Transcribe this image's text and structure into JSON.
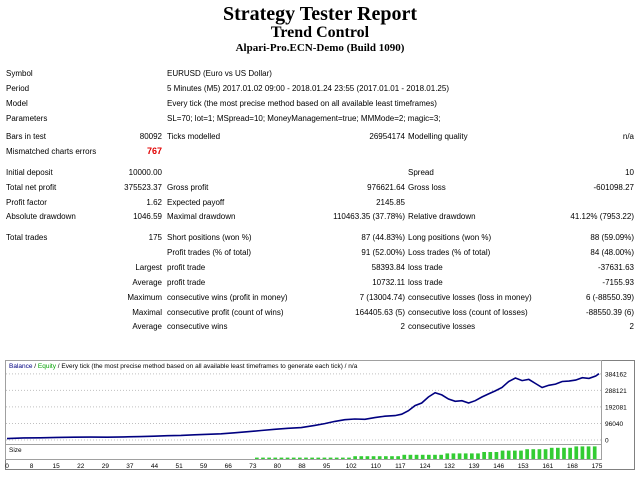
{
  "header": {
    "title": "Strategy Tester Report",
    "subtitle": "Trend Control",
    "server": "Alpari-Pro.ECN-Demo (Build 1090)"
  },
  "info": {
    "symbol_label": "Symbol",
    "symbol": "EURUSD (Euro vs US Dollar)",
    "period_label": "Period",
    "period": "5 Minutes (M5) 2017.01.02 09:00 - 2018.01.24 23:55 (2017.01.01 - 2018.01.25)",
    "model_label": "Model",
    "model": "Every tick (the most precise method based on all available least timeframes)",
    "parameters_label": "Parameters",
    "parameters": "SL=70; lot=1; MSpread=10; MoneyManagement=true; MMMode=2; magic=3;"
  },
  "bars": {
    "bars_label": "Bars in test",
    "bars": "80092",
    "ticks_label": "Ticks modelled",
    "ticks": "26954174",
    "quality_label": "Modelling quality",
    "quality": "n/a",
    "mismatch_label": "Mismatched charts errors",
    "mismatch": "767"
  },
  "stats": {
    "initial_deposit_label": "Initial deposit",
    "initial_deposit": "10000.00",
    "spread_label": "Spread",
    "spread": "10",
    "net_profit_label": "Total net profit",
    "net_profit": "375523.37",
    "gross_profit_label": "Gross profit",
    "gross_profit": "976621.64",
    "gross_loss_label": "Gross loss",
    "gross_loss": "-601098.27",
    "profit_factor_label": "Profit factor",
    "profit_factor": "1.62",
    "expected_payoff_label": "Expected payoff",
    "expected_payoff": "2145.85",
    "abs_dd_label": "Absolute drawdown",
    "abs_dd": "1046.59",
    "max_dd_label": "Maximal drawdown",
    "max_dd": "110463.35 (37.78%)",
    "rel_dd_label": "Relative drawdown",
    "rel_dd": "41.12% (7953.22)"
  },
  "trades": {
    "total_label": "Total trades",
    "total": "175",
    "short_label": "Short positions (won %)",
    "short": "87 (44.83%)",
    "long_label": "Long positions (won %)",
    "long": "88 (59.09%)",
    "profit_trades_label": "Profit trades (% of total)",
    "profit_trades": "91 (52.00%)",
    "loss_trades_label": "Loss trades (% of total)",
    "loss_trades": "84 (48.00%)",
    "largest_label": "Largest",
    "average_label": "Average",
    "maximum_label": "Maximum",
    "maximal_label": "Maximal",
    "average2_label": "Average",
    "largest_profit_label": "profit trade",
    "largest_profit": "58393.84",
    "largest_loss_label": "loss trade",
    "largest_loss": "-37631.63",
    "avg_profit_label": "profit trade",
    "avg_profit": "10732.11",
    "avg_loss_label": "loss trade",
    "avg_loss": "-7155.93",
    "max_cons_wins_label": "consecutive wins (profit in money)",
    "max_cons_wins": "7 (13004.74)",
    "max_cons_losses_label": "consecutive losses (loss in money)",
    "max_cons_losses": "6 (-88550.39)",
    "maximal_profit_label": "consecutive profit (count of wins)",
    "maximal_profit": "164405.63 (5)",
    "maximal_loss_label": "consecutive loss (count of losses)",
    "maximal_loss": "-88550.39 (6)",
    "avg_cons_wins_label": "consecutive wins",
    "avg_cons_wins": "2",
    "avg_cons_losses_label": "consecutive losses",
    "avg_cons_losses": "2"
  },
  "chart_data": {
    "type": "line",
    "legend_balance": "Balance",
    "legend_equity": "Equity",
    "legend_rest": "Every tick (the most precise method based on all available least timeframes to generate each tick)",
    "legend_na": "n/a",
    "size_label": "Size",
    "x_ticks": [
      "0",
      "8",
      "15",
      "22",
      "29",
      "37",
      "44",
      "51",
      "59",
      "66",
      "73",
      "80",
      "88",
      "95",
      "102",
      "110",
      "117",
      "124",
      "132",
      "139",
      "146",
      "153",
      "161",
      "168",
      "175"
    ],
    "y_ticks": [
      "384162",
      "288121",
      "192081",
      "96040",
      "0"
    ],
    "ylim": [
      0,
      395000
    ],
    "xlim": [
      0,
      177
    ],
    "colors": {
      "balance": "#000080",
      "equity": "#00a000",
      "size": "#33cc33",
      "grid": "#c0c0c0"
    },
    "balance": [
      [
        0,
        8000
      ],
      [
        5,
        12000
      ],
      [
        10,
        13000
      ],
      [
        15,
        15000
      ],
      [
        20,
        16000
      ],
      [
        25,
        17000
      ],
      [
        30,
        16500
      ],
      [
        35,
        18000
      ],
      [
        40,
        20000
      ],
      [
        44,
        22000
      ],
      [
        48,
        25000
      ],
      [
        52,
        27000
      ],
      [
        56,
        30000
      ],
      [
        60,
        33000
      ],
      [
        64,
        36000
      ],
      [
        68,
        42000
      ],
      [
        72,
        48000
      ],
      [
        76,
        55000
      ],
      [
        80,
        62000
      ],
      [
        84,
        68000
      ],
      [
        88,
        72000
      ],
      [
        92,
        85000
      ],
      [
        95,
        95000
      ],
      [
        98,
        108000
      ],
      [
        101,
        118000
      ],
      [
        104,
        122000
      ],
      [
        107,
        120000
      ],
      [
        110,
        130000
      ],
      [
        113,
        138000
      ],
      [
        116,
        142000
      ],
      [
        118,
        150000
      ],
      [
        120,
        170000
      ],
      [
        122,
        200000
      ],
      [
        124,
        215000
      ],
      [
        126,
        250000
      ],
      [
        128,
        275000
      ],
      [
        130,
        262000
      ],
      [
        132,
        238000
      ],
      [
        134,
        225000
      ],
      [
        136,
        228000
      ],
      [
        138,
        215000
      ],
      [
        140,
        228000
      ],
      [
        142,
        250000
      ],
      [
        144,
        268000
      ],
      [
        146,
        285000
      ],
      [
        148,
        305000
      ],
      [
        150,
        340000
      ],
      [
        152,
        360000
      ],
      [
        154,
        345000
      ],
      [
        156,
        352000
      ],
      [
        158,
        328000
      ],
      [
        160,
        305000
      ],
      [
        162,
        318000
      ],
      [
        164,
        325000
      ],
      [
        166,
        340000
      ],
      [
        168,
        342000
      ],
      [
        170,
        348000
      ],
      [
        172,
        362000
      ],
      [
        174,
        358000
      ],
      [
        176,
        372000
      ],
      [
        177,
        385000
      ]
    ],
    "size": [
      1,
      1,
      1,
      1,
      1,
      1,
      1,
      1,
      1,
      1,
      1,
      1,
      1,
      1,
      1,
      1,
      2,
      2,
      2,
      2,
      2,
      2,
      2,
      2,
      3,
      3,
      3,
      3,
      3,
      3,
      3,
      4,
      4,
      4,
      4,
      4,
      4,
      5,
      5,
      5,
      6,
      6,
      6,
      6,
      7,
      7,
      7,
      7,
      8,
      8,
      8,
      8,
      9,
      9,
      9,
      9
    ]
  }
}
